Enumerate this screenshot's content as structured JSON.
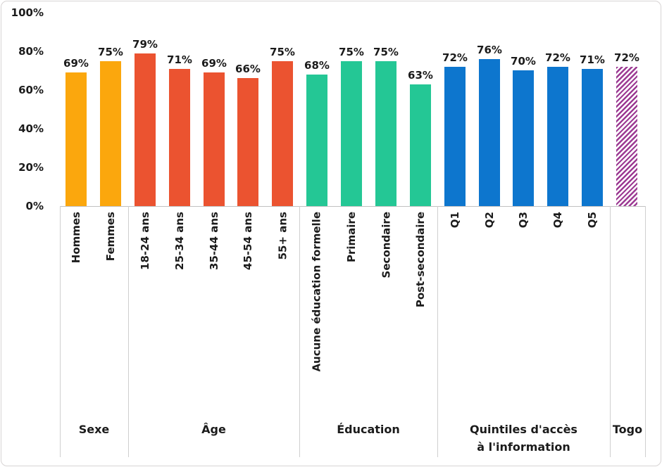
{
  "chart_data": {
    "type": "bar",
    "title": "",
    "xlabel": "",
    "ylabel": "",
    "value_suffix": "%",
    "grid": false,
    "legend": "none",
    "y_axis": {
      "min": 0,
      "max": 100,
      "ticks": [
        {
          "label": "0%",
          "value": 0
        },
        {
          "label": "20%",
          "value": 20
        },
        {
          "label": "40%",
          "value": 40
        },
        {
          "label": "60%",
          "value": 60
        },
        {
          "label": "80%",
          "value": 80
        },
        {
          "label": "100%",
          "value": 100
        }
      ]
    },
    "groups": [
      {
        "label": "Sexe",
        "color": "#FBA70D",
        "pattern": "solid",
        "bars": [
          {
            "label": "Hommes",
            "value": 69,
            "value_label": "69%"
          },
          {
            "label": "Femmes",
            "value": 75,
            "value_label": "75%"
          }
        ]
      },
      {
        "label": "Âge",
        "color": "#EB5330",
        "pattern": "solid",
        "bars": [
          {
            "label": "18-24 ans",
            "value": 79,
            "value_label": "79%"
          },
          {
            "label": "25-34 ans",
            "value": 71,
            "value_label": "71%"
          },
          {
            "label": "35-44 ans",
            "value": 69,
            "value_label": "69%"
          },
          {
            "label": "45-54 ans",
            "value": 66,
            "value_label": "66%"
          },
          {
            "label": "55+ ans",
            "value": 75,
            "value_label": "75%"
          }
        ]
      },
      {
        "label": "Éducation",
        "color": "#24C795",
        "pattern": "solid",
        "bars": [
          {
            "label": "Aucune éducation formelle",
            "value": 68,
            "value_label": "68%"
          },
          {
            "label": "Primaire",
            "value": 75,
            "value_label": "75%"
          },
          {
            "label": "Secondaire",
            "value": 75,
            "value_label": "75%"
          },
          {
            "label": "Post-secondaire",
            "value": 63,
            "value_label": "63%"
          }
        ]
      },
      {
        "label": "Quintiles d'accès\nà l'information",
        "color": "#0D76CE",
        "pattern": "solid",
        "bars": [
          {
            "label": "Q1",
            "value": 72,
            "value_label": "72%"
          },
          {
            "label": "Q2",
            "value": 76,
            "value_label": "76%"
          },
          {
            "label": "Q3",
            "value": 70,
            "value_label": "70%"
          },
          {
            "label": "Q4",
            "value": 72,
            "value_label": "72%"
          },
          {
            "label": "Q5",
            "value": 71,
            "value_label": "71%"
          }
        ]
      },
      {
        "label": "Togo",
        "color": "#9C3A93",
        "pattern": "diagonal-hatch",
        "bars": [
          {
            "label": "",
            "value": 72,
            "value_label": "72%"
          }
        ]
      }
    ]
  },
  "colors": {
    "sexe": "#FBA70D",
    "age": "#EB5330",
    "education": "#24C795",
    "quintiles": "#0D76CE",
    "togo_hatch": "#9C3A93",
    "axis_line": "#C1C1C1",
    "divider": "#CFCFCF",
    "text": "#1B1B1B",
    "outer_border": "#D7D4D4",
    "background": "#FFFFFF"
  }
}
